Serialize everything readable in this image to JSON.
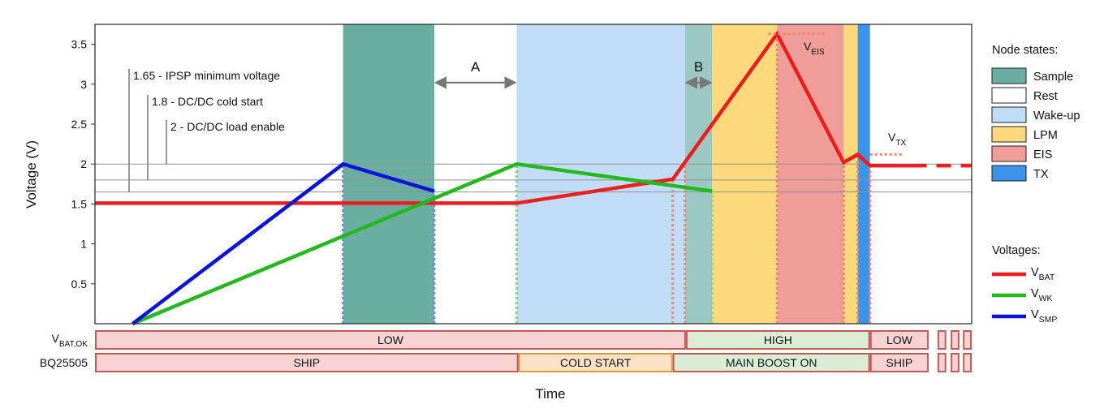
{
  "chart_data": {
    "type": "line",
    "xlabel": "Time",
    "ylabel": "Voltage (V)",
    "ylim": [
      0,
      3.75
    ],
    "y_ticks": [
      {
        "v": 0.5,
        "label": "0.5"
      },
      {
        "v": 1,
        "label": "1"
      },
      {
        "v": 1.5,
        "label": "1.5"
      },
      {
        "v": 2,
        "label": "2"
      },
      {
        "v": 2.5,
        "label": "2.5"
      },
      {
        "v": 3,
        "label": "3"
      },
      {
        "v": 3.5,
        "label": "3.5"
      }
    ],
    "x_unit": "relative time (0–100, unlabeled axis)",
    "xlim": [
      0,
      100
    ],
    "threshold_lines": [
      {
        "value": 1.65,
        "label": "1.65 - IPSP minimum voltage",
        "x_end": 100
      },
      {
        "value": 1.8,
        "label": "1.8 - DC/DC cold start",
        "x_end": 100
      },
      {
        "value": 2.0,
        "label": "2 - DC/DC load enable",
        "x_end": 100
      }
    ],
    "state_regions": [
      {
        "state": "Sample",
        "x0": 28.3,
        "x1": 38.7,
        "color": "#6aada1"
      },
      {
        "state": "Wake-up",
        "x0": 48.1,
        "x1": 67.3,
        "color": "#c0dcf7"
      },
      {
        "state": "Sample",
        "x0": 67.3,
        "x1": 70.4,
        "color": "#9cc8c3"
      },
      {
        "state": "LPM",
        "x0": 70.4,
        "x1": 77.8,
        "color": "#fed97b"
      },
      {
        "state": "EIS",
        "x0": 77.8,
        "x1": 85.4,
        "color": "#f09d99"
      },
      {
        "state": "LPM",
        "x0": 85.4,
        "x1": 87.0,
        "color": "#fed97b"
      },
      {
        "state": "TX",
        "x0": 87.0,
        "x1": 88.4,
        "color": "#3b93ea"
      }
    ],
    "dotted_markers": [
      {
        "x": 28.3,
        "y0": 0,
        "y1": 2.0,
        "color": "#6e8fd8"
      },
      {
        "x": 38.7,
        "y0": 0,
        "y1": 1.66,
        "color": "#6e8fd8"
      },
      {
        "x": 48.1,
        "y0": 0,
        "y1": 2.0,
        "color": "#8ed484"
      },
      {
        "x": 70.4,
        "y0": 0,
        "y1": 1.66,
        "color": "#8ed484"
      },
      {
        "x": 65.9,
        "y0": 0,
        "y1": 1.8,
        "color": "#f2876f"
      },
      {
        "x": 67.3,
        "y0": 0,
        "y1": 2.0,
        "color": "#f2876f"
      },
      {
        "x": 77.8,
        "y0": 0,
        "y1": 3.63,
        "color": "#f2876f"
      },
      {
        "x": 85.4,
        "y0": 0,
        "y1": 2.02,
        "color": "#f2876f"
      },
      {
        "x": 87.0,
        "y0": 0,
        "y1": 2.12,
        "color": "#f2876f"
      },
      {
        "x": 88.4,
        "y0": 0,
        "y1": 1.98,
        "color": "#f2876f"
      }
    ],
    "level_markers": [
      {
        "label": "V_EIS",
        "x0": 76.8,
        "x1": 83.2,
        "y": 3.63,
        "color": "#f2876f"
      },
      {
        "label": "V_TX",
        "x0": 88.4,
        "x1": 92.3,
        "y": 2.12,
        "color": "#f2876f"
      }
    ],
    "series": [
      {
        "name": "V_BAT",
        "color": "#ee1d1d",
        "points": [
          [
            0,
            1.51
          ],
          [
            48.1,
            1.51
          ],
          [
            65.9,
            1.81
          ],
          [
            77.8,
            3.63
          ],
          [
            85.4,
            2.02
          ],
          [
            87.0,
            2.12
          ],
          [
            88.4,
            1.98
          ],
          [
            93.2,
            1.98
          ]
        ],
        "dashed_continuation": [
          [
            93.2,
            1.98
          ],
          [
            100,
            1.98
          ]
        ]
      },
      {
        "name": "V_WK",
        "color": "#22b91d",
        "points": [
          [
            4.3,
            0
          ],
          [
            48.1,
            2.0
          ],
          [
            70.4,
            1.66
          ]
        ]
      },
      {
        "name": "V_SMP",
        "color": "#0a14d8",
        "points": [
          [
            4.3,
            0
          ],
          [
            28.3,
            2.0
          ],
          [
            38.7,
            1.66
          ]
        ]
      }
    ],
    "interval_annotations": [
      {
        "label": "A",
        "x0": 38.7,
        "x1": 48.1,
        "y": 3.02
      },
      {
        "label": "B",
        "x0": 67.3,
        "x1": 70.4,
        "y": 3.02
      }
    ],
    "status_rows": [
      {
        "label_main": "V",
        "label_sub": "BAT,OK",
        "segments": [
          {
            "text": "LOW",
            "x0": 0,
            "x1": 67.4,
            "fill": "#f8d3d3",
            "stroke": "#c25a5a"
          },
          {
            "text": "HIGH",
            "x0": 67.4,
            "x1": 88.4,
            "fill": "#dbeed5",
            "stroke": "#c25a5a"
          },
          {
            "text": "LOW",
            "x0": 88.4,
            "x1": 95.1,
            "fill": "#f8d3d3",
            "stroke": "#c25a5a"
          },
          {
            "text": "",
            "x0": 96.1,
            "x1": 97.1,
            "fill": "#f8d3d3",
            "stroke": "#c25a5a"
          },
          {
            "text": "",
            "x0": 97.6,
            "x1": 98.6,
            "fill": "#f8d3d3",
            "stroke": "#c25a5a"
          },
          {
            "text": "",
            "x0": 99.0,
            "x1": 100,
            "fill": "#f8d3d3",
            "stroke": "#c25a5a"
          }
        ]
      },
      {
        "label_main": "BQ25505",
        "label_sub": "",
        "segments": [
          {
            "text": "SHIP",
            "x0": 0,
            "x1": 48.3,
            "fill": "#f8d3d3",
            "stroke": "#c25a5a"
          },
          {
            "text": "COLD START",
            "x0": 48.3,
            "x1": 65.9,
            "fill": "#fbe2c6",
            "stroke": "#d8a040"
          },
          {
            "text": "MAIN BOOST ON",
            "x0": 65.9,
            "x1": 88.4,
            "fill": "#dbeed5",
            "stroke": "#c25a5a"
          },
          {
            "text": "SHIP",
            "x0": 88.4,
            "x1": 95.1,
            "fill": "#f8d3d3",
            "stroke": "#c25a5a"
          },
          {
            "text": "",
            "x0": 96.1,
            "x1": 97.1,
            "fill": "#f8d3d3",
            "stroke": "#c25a5a"
          },
          {
            "text": "",
            "x0": 97.6,
            "x1": 98.6,
            "fill": "#f8d3d3",
            "stroke": "#c25a5a"
          },
          {
            "text": "",
            "x0": 99.0,
            "x1": 100,
            "fill": "#f8d3d3",
            "stroke": "#c25a5a"
          }
        ]
      }
    ],
    "legend_states_title": "Node states:",
    "legend_states": [
      {
        "label": "Sample",
        "color": "#6aada1"
      },
      {
        "label": "Rest",
        "color": "#ffffff"
      },
      {
        "label": "Wake-up",
        "color": "#c0dcf7"
      },
      {
        "label": "LPM",
        "color": "#fed97b"
      },
      {
        "label": "EIS",
        "color": "#f09d99"
      },
      {
        "label": "TX",
        "color": "#3b93ea"
      }
    ],
    "legend_voltages_title": "Voltages:",
    "legend_voltages": [
      {
        "label_main": "V",
        "label_sub": "BAT",
        "color": "#ee1d1d"
      },
      {
        "label_main": "V",
        "label_sub": "WK",
        "color": "#22b91d"
      },
      {
        "label_main": "V",
        "label_sub": "SMP",
        "color": "#0a14d8"
      }
    ],
    "level_labels": [
      {
        "main": "V",
        "sub": "EIS"
      },
      {
        "main": "V",
        "sub": "TX"
      }
    ]
  }
}
